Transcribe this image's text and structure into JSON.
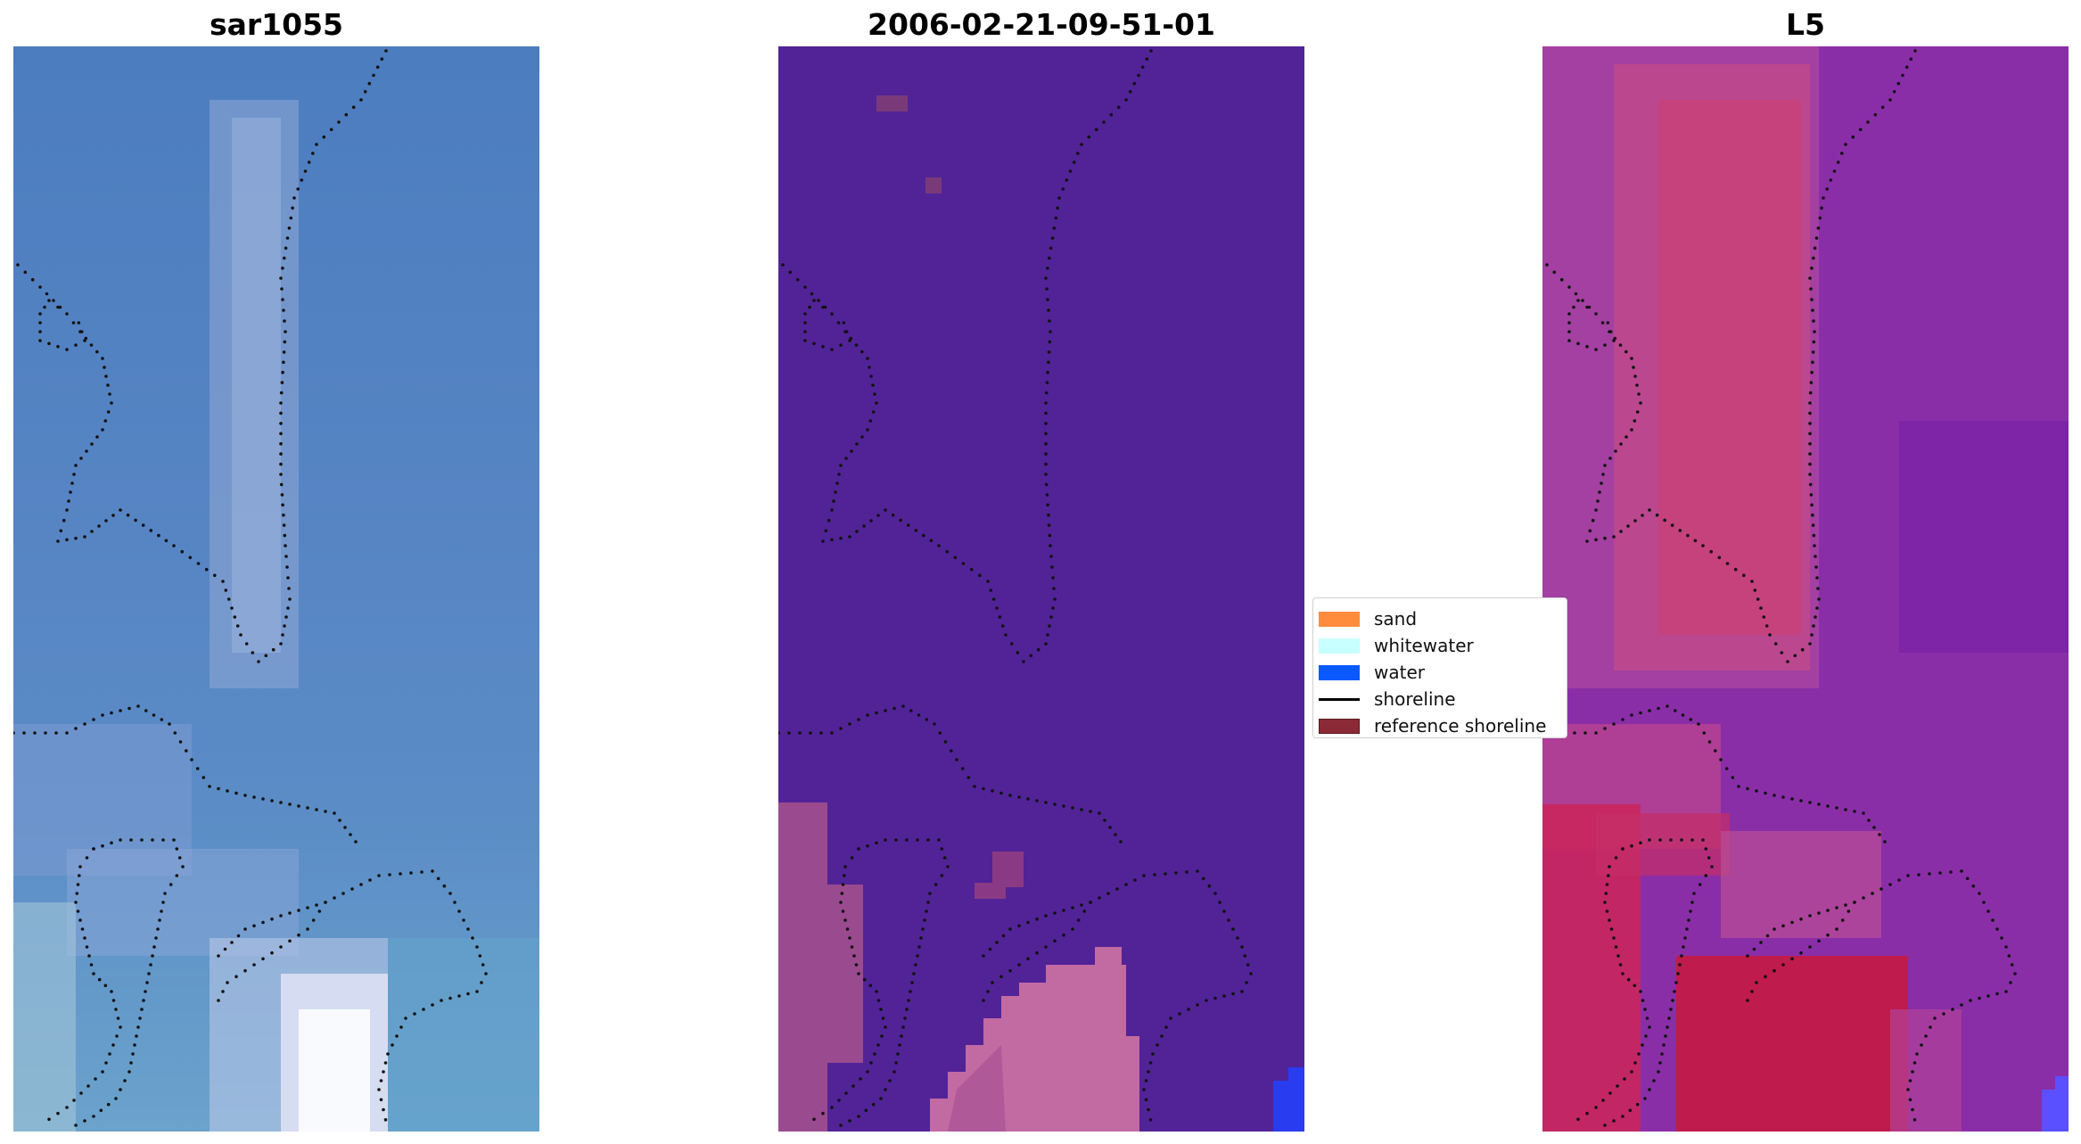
{
  "panels": [
    {
      "title": "sar1055"
    },
    {
      "title": "2006-02-21-09-51-01"
    },
    {
      "title": "L5"
    }
  ],
  "legend": {
    "items": [
      {
        "label": "sand",
        "color": "#ff8c3c",
        "kind": "patch"
      },
      {
        "label": "whitewater",
        "color": "#c8ffff",
        "kind": "patch"
      },
      {
        "label": "water",
        "color": "#0a5aff",
        "kind": "patch"
      },
      {
        "label": "shoreline",
        "color": "#000000",
        "kind": "line"
      },
      {
        "label": "reference shoreline",
        "color": "#8b2a36",
        "kind": "patch"
      }
    ]
  },
  "colors": {
    "rgb_background": "#5785c4",
    "classified_background": "#512397",
    "classified_sand_overlay": "#b15a9a",
    "classified_water": "#2a3cf0",
    "mndwi_background": "#8a2ea8",
    "mndwi_high": "#c8183c",
    "mndwi_water": "#5a50ff"
  }
}
